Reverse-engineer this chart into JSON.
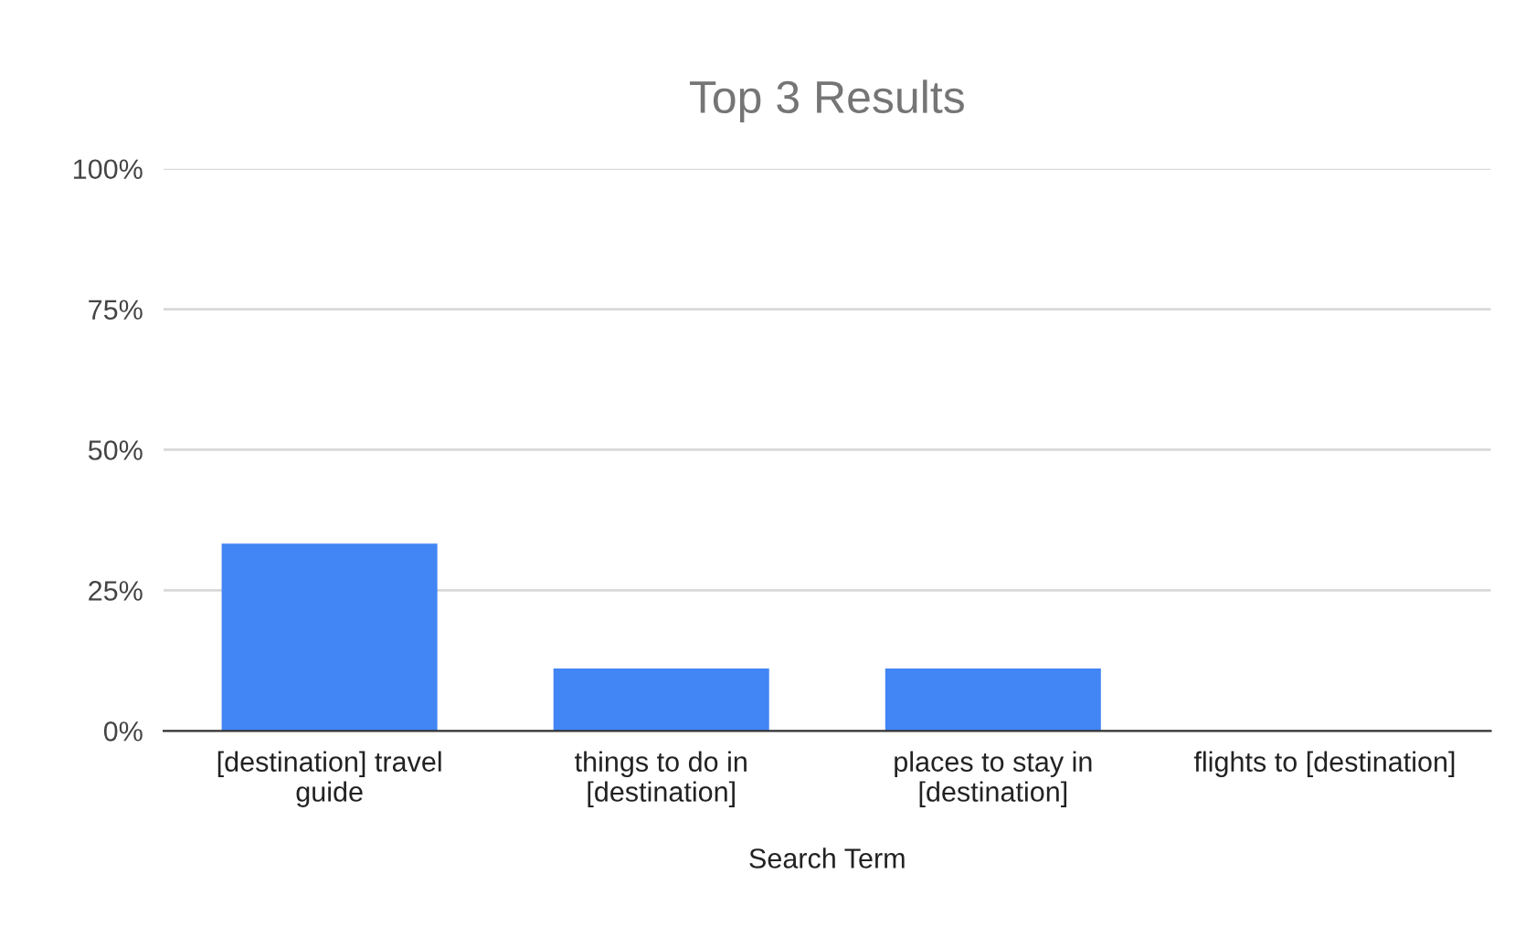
{
  "chart_data": {
    "type": "bar",
    "title": "Top 3 Results",
    "xlabel": "Search Term",
    "categories": [
      "[destination] travel\nguide",
      "things to do in\n[destination]",
      "places to stay in\n[destination]",
      "flights to [destination]"
    ],
    "values": [
      33.3,
      11.1,
      11.1,
      0
    ],
    "color": "#4285f4",
    "ylim": [
      0,
      100
    ],
    "yticks": [
      {
        "value": 0,
        "label": "0%"
      },
      {
        "value": 25,
        "label": "25%"
      },
      {
        "value": 50,
        "label": "50%"
      },
      {
        "value": 75,
        "label": "75%"
      },
      {
        "value": 100,
        "label": "100%"
      }
    ],
    "grid": "y",
    "legend": false
  }
}
